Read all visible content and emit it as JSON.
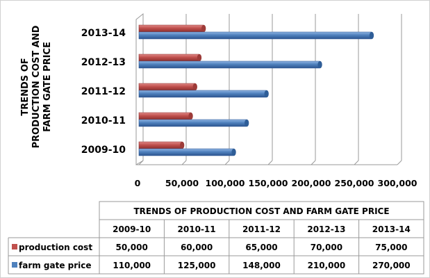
{
  "chart_data": {
    "type": "bar",
    "orientation": "horizontal",
    "title": "TRENDS OF PRODUCTION COST AND FARM GATE PRICE",
    "ylabel_lines": [
      "TRENDS OF",
      "PRODUCTION COST AND",
      "FARM GATE PRICE"
    ],
    "xlabel": "",
    "categories": [
      "2009-10",
      "2010-11",
      "2011-12",
      "2012-13",
      "2013-14"
    ],
    "xlim": [
      0,
      300000
    ],
    "x_ticks": [
      "0",
      "50,000",
      "100,000",
      "150,000",
      "200,000",
      "250,000",
      "300,000"
    ],
    "grid": true,
    "series": [
      {
        "name": "production cost",
        "color": "#c0504d",
        "values": [
          50000,
          60000,
          65000,
          70000,
          75000
        ],
        "labels": [
          "50,000",
          "60,000",
          "65,000",
          "70,000",
          "75,000"
        ]
      },
      {
        "name": "farm gate price",
        "color": "#4f81bd",
        "values": [
          110000,
          125000,
          148000,
          210000,
          270000
        ],
        "labels": [
          "110,000",
          "125,000",
          "148,000",
          "210,000",
          "270,000"
        ]
      }
    ],
    "data_table": true
  }
}
